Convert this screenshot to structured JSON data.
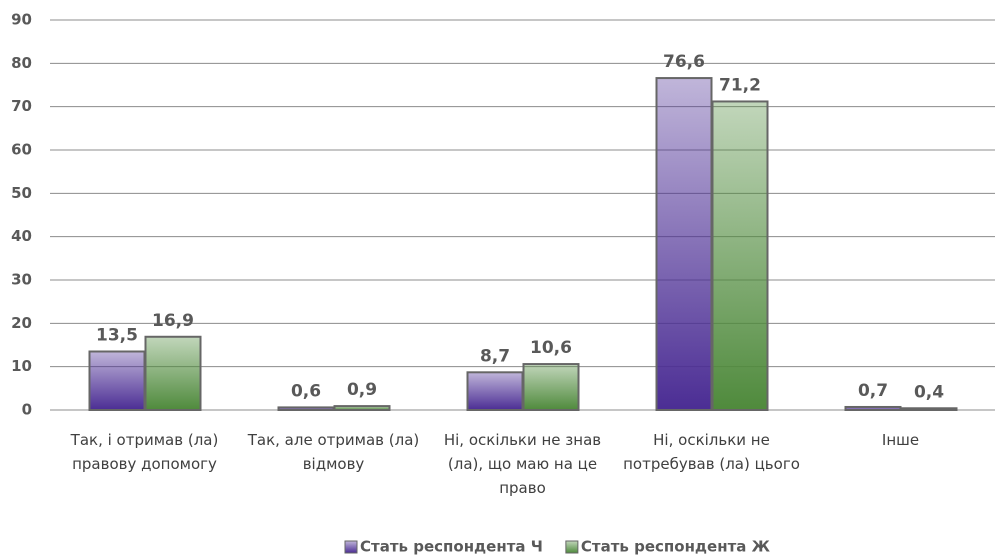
{
  "chart_data": {
    "type": "bar",
    "categories": [
      "Так, і отримав (ла) правову допомогу",
      "Так, але отримав (ла) відмову",
      "Ні, оскільки не знав (ла), що маю на це право",
      "Ні, оскільки не потребував (ла) цього",
      "Інше"
    ],
    "series": [
      {
        "name": "Стать респондента Ч",
        "color": "#4b2d94",
        "values": [
          13.5,
          0.6,
          8.7,
          76.6,
          0.7
        ],
        "value_labels": [
          "13,5",
          "0,6",
          "8,7",
          "76,6",
          "0,7"
        ]
      },
      {
        "name": "Стать респондента Ж",
        "color": "#4f8a3c",
        "values": [
          16.9,
          0.9,
          10.6,
          71.2,
          0.4
        ],
        "value_labels": [
          "16,9",
          "0,9",
          "10,6",
          "71,2",
          "0,4"
        ]
      }
    ],
    "ylim": [
      0,
      90
    ],
    "yticks": [
      0,
      10,
      20,
      30,
      40,
      50,
      60,
      70,
      80,
      90
    ],
    "grid": true,
    "legend": "bottom"
  }
}
